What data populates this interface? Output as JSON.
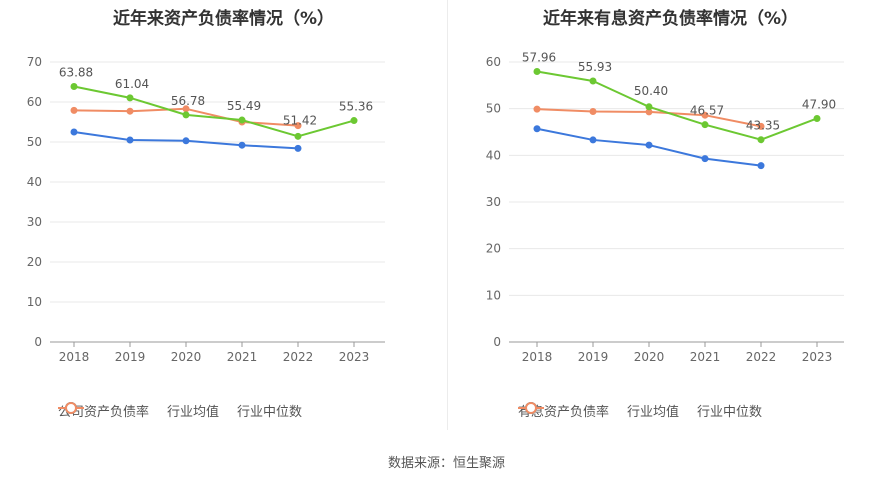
{
  "source_text": "数据来源：恒生聚源",
  "colors": {
    "company": "#6cc832",
    "avg": "#3c78dc",
    "median": "#f08c64"
  },
  "chart_data": [
    {
      "type": "line",
      "title": "近年来资产负债率情况（%）",
      "categories": [
        "2018",
        "2019",
        "2020",
        "2021",
        "2022",
        "2023"
      ],
      "yticks": [
        0,
        10,
        20,
        30,
        40,
        50,
        60,
        70
      ],
      "ylim": [
        0,
        70
      ],
      "grid": true,
      "legend_position": "bottom",
      "series": [
        {
          "name": "公司资产负债率",
          "key": "company",
          "values": [
            63.88,
            61.04,
            56.78,
            55.49,
            51.42,
            55.36
          ],
          "labels": [
            "63.88",
            "61.04",
            "56.78",
            "55.49",
            "51.42",
            "55.36"
          ]
        },
        {
          "name": "行业均值",
          "key": "avg",
          "values": [
            52.5,
            50.5,
            50.3,
            49.2,
            48.4,
            null
          ]
        },
        {
          "name": "行业中位数",
          "key": "median",
          "values": [
            57.9,
            57.7,
            58.3,
            55.0,
            54.1,
            null
          ]
        }
      ]
    },
    {
      "type": "line",
      "title": "近年来有息资产负债率情况（%）",
      "categories": [
        "2018",
        "2019",
        "2020",
        "2021",
        "2022",
        "2023"
      ],
      "yticks": [
        0,
        10,
        20,
        30,
        40,
        50,
        60
      ],
      "ylim": [
        0,
        60
      ],
      "grid": true,
      "legend_position": "bottom",
      "series": [
        {
          "name": "有息资产负债率",
          "key": "company",
          "values": [
            57.96,
            55.93,
            50.4,
            46.57,
            43.35,
            47.9
          ],
          "labels": [
            "57.96",
            "55.93",
            "50.40",
            "46.57",
            "43.35",
            "47.90"
          ]
        },
        {
          "name": "行业均值",
          "key": "avg",
          "values": [
            45.7,
            43.3,
            42.2,
            39.3,
            37.8,
            null
          ]
        },
        {
          "name": "行业中位数",
          "key": "median",
          "values": [
            49.9,
            49.4,
            49.3,
            48.6,
            46.2,
            null
          ]
        }
      ]
    }
  ]
}
